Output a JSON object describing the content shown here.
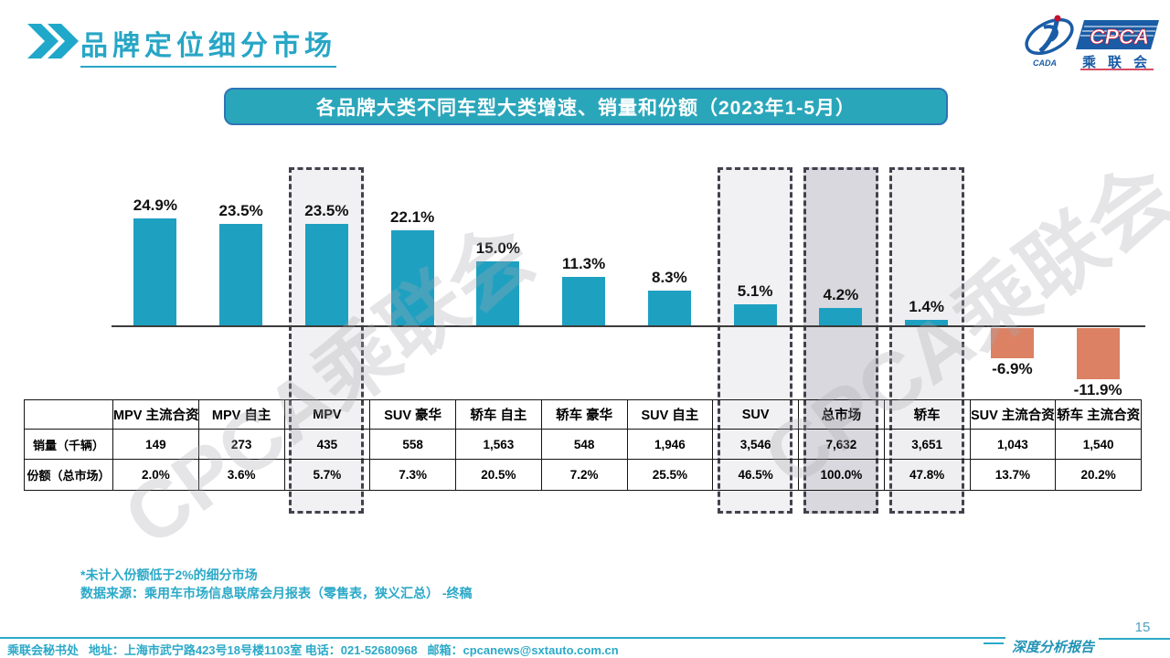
{
  "header": {
    "title": "品牌定位细分市场"
  },
  "logo": {
    "cpca": "CPCA",
    "cada": "CADA",
    "name_cn": "乘联会"
  },
  "banner": {
    "title": "各品牌大类不同车型大类增速、销量和份额（2023年1-5月）"
  },
  "chart_data": {
    "type": "bar",
    "title": "各品牌大类不同车型大类增速、销量和份额（2023年1-5月）",
    "categories": [
      "MPV 主流合资",
      "MPV 自主",
      "MPV",
      "SUV 豪华",
      "轿车 自主",
      "轿车 豪华",
      "SUV 自主",
      "SUV",
      "总市场",
      "轿车",
      "SUV 主流合资",
      "轿车 主流合资"
    ],
    "series": [
      {
        "name": "增速",
        "unit": "%",
        "values": [
          24.9,
          23.5,
          23.5,
          22.1,
          15.0,
          11.3,
          8.3,
          5.1,
          4.2,
          1.4,
          -6.9,
          -11.9
        ]
      },
      {
        "name": "销量（千辆）",
        "values": [
          149,
          273,
          435,
          558,
          1563,
          548,
          1946,
          3546,
          7632,
          3651,
          1043,
          1540
        ]
      },
      {
        "name": "份额（总市场）",
        "unit": "%",
        "values": [
          2.0,
          3.6,
          5.7,
          7.3,
          20.5,
          7.2,
          25.5,
          46.5,
          100.0,
          47.8,
          13.7,
          20.2
        ]
      }
    ],
    "bar_color": "#1EA0C1",
    "negative_bar_color": "#DC8164",
    "data_labels": true,
    "gridlines": false,
    "baseline": 0,
    "legend": "none",
    "highlights": [
      {
        "category": "MPV",
        "index": 2,
        "fill": "#F1F1F3"
      },
      {
        "category": "SUV",
        "index": 7,
        "fill": "#F1F1F3"
      },
      {
        "category": "总市场",
        "index": 8,
        "fill": "#D8D8DE"
      },
      {
        "category": "轿车",
        "index": 9,
        "fill": "#EFEFF1"
      }
    ]
  },
  "table": {
    "row_labels": [
      "销量（千辆）",
      "份额（总市场）"
    ]
  },
  "notes": {
    "line1": "*未计入份额低于2%的细分市场",
    "line2": "数据来源：乘用车市场信息联席会月报表（零售表，狭义汇总） -终稿"
  },
  "watermark": {
    "text": "CPCA乘联会"
  },
  "footer": {
    "contact": "乘联会秘书处   地址：上海市武宁路423号18号楼1103室 电话：021-52680968   邮箱：cpcanews@sxtauto.com.cn",
    "report_label": "深度分析报告",
    "page_number": "15"
  }
}
